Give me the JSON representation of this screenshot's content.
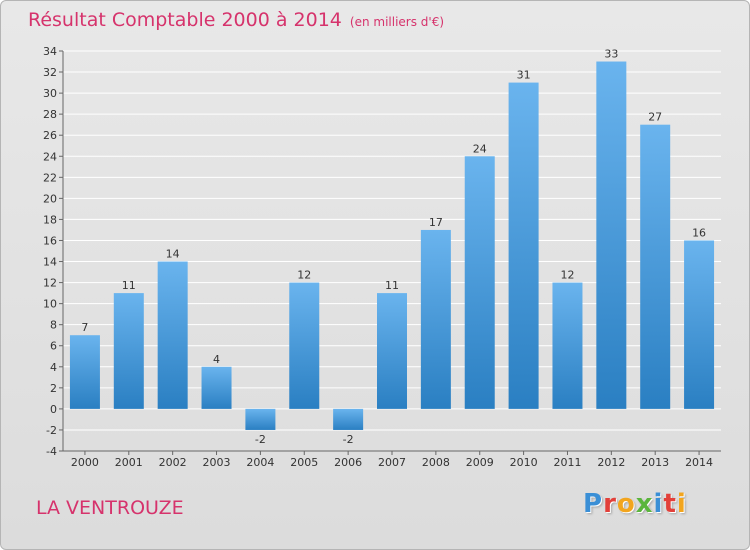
{
  "header": {
    "title": "Résultat Comptable 2000 à 2014",
    "subtitle": "(en milliers d'€)"
  },
  "footer": {
    "commune": "LA VENTROUZE",
    "brand": "Proxiti",
    "brand_letter_colors": [
      "#3a8fd6",
      "#e2403a",
      "#f2a51e",
      "#5bb53d",
      "#3a8fd6",
      "#e2403a",
      "#f2a51e"
    ]
  },
  "colors": {
    "title": "#d6336c",
    "bar_light": "#6ab4ee",
    "bar_dark": "#2a7fc2",
    "grid": "#ffffff",
    "axis": "#666666",
    "text": "#333333"
  },
  "chart_data": {
    "type": "bar",
    "categories": [
      "2000",
      "2001",
      "2002",
      "2003",
      "2004",
      "2005",
      "2006",
      "2007",
      "2008",
      "2009",
      "2010",
      "2011",
      "2012",
      "2013",
      "2014"
    ],
    "values": [
      7,
      11,
      14,
      4,
      -2,
      12,
      -2,
      11,
      17,
      24,
      31,
      12,
      33,
      27,
      16
    ],
    "data_labels": [
      "7",
      "11",
      "14",
      "4",
      "-2",
      "12",
      "-2",
      "11",
      "17",
      "24",
      "31",
      "12",
      "33",
      "27",
      "16"
    ],
    "title": "Résultat Comptable 2000 à 2014",
    "subtitle": "(en milliers d'€)",
    "xlabel": "",
    "ylabel": "",
    "ylim": [
      -4,
      34
    ],
    "yticks": [
      -4,
      -2,
      0,
      2,
      4,
      6,
      8,
      10,
      12,
      14,
      16,
      18,
      20,
      22,
      24,
      26,
      28,
      30,
      32,
      34
    ],
    "grid": true,
    "legend": "none"
  }
}
